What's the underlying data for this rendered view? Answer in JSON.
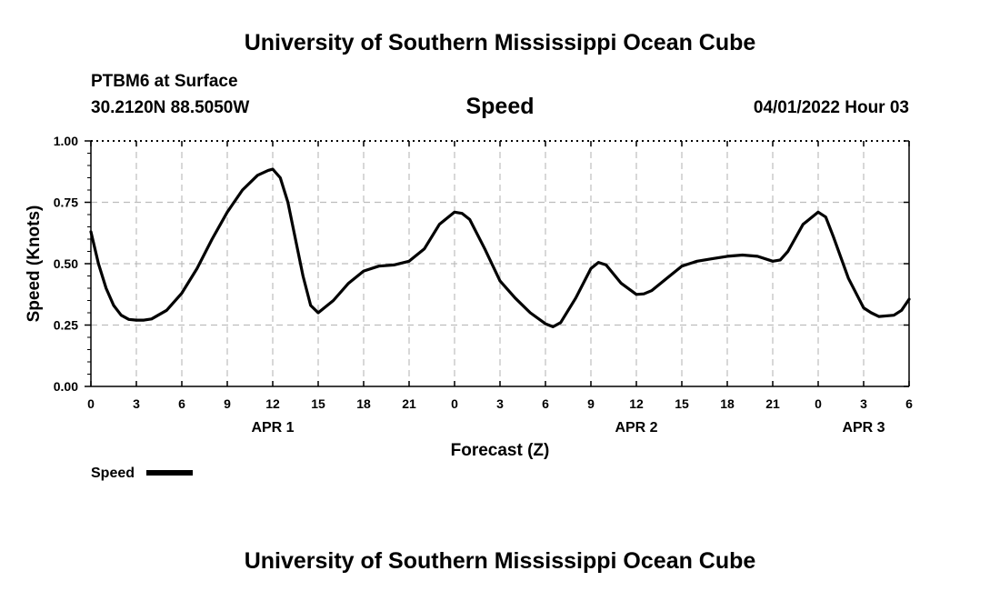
{
  "header": {
    "title": "University of Southern Mississippi Ocean Cube",
    "station": "PTBM6 at Surface",
    "location": "30.2120N  88.5050W",
    "datetime": "04/01/2022 Hour 03",
    "footer_title": "University of Southern Mississippi Ocean Cube"
  },
  "chart_data": {
    "type": "line",
    "title": "Speed",
    "xlabel": "Forecast (Z)",
    "ylabel": "Speed (Knots)",
    "x_unit": "hours since 04/01/2022 00Z",
    "xlim": [
      0,
      54
    ],
    "ylim": [
      0,
      1
    ],
    "grid": true,
    "legend_position": "bottom-left",
    "y_ticks": [
      {
        "value": 0,
        "label": "0.00"
      },
      {
        "value": 0.25,
        "label": "0.25"
      },
      {
        "value": 0.5,
        "label": "0.50"
      },
      {
        "value": 0.75,
        "label": "0.75"
      },
      {
        "value": 1,
        "label": "1.00"
      }
    ],
    "x_ticks": [
      {
        "value": 0,
        "label": "0"
      },
      {
        "value": 3,
        "label": "3"
      },
      {
        "value": 6,
        "label": "6"
      },
      {
        "value": 9,
        "label": "9"
      },
      {
        "value": 12,
        "label": "12"
      },
      {
        "value": 15,
        "label": "15"
      },
      {
        "value": 18,
        "label": "18"
      },
      {
        "value": 21,
        "label": "21"
      },
      {
        "value": 24,
        "label": "0"
      },
      {
        "value": 27,
        "label": "3"
      },
      {
        "value": 30,
        "label": "6"
      },
      {
        "value": 33,
        "label": "9"
      },
      {
        "value": 36,
        "label": "12"
      },
      {
        "value": 39,
        "label": "15"
      },
      {
        "value": 42,
        "label": "18"
      },
      {
        "value": 45,
        "label": "21"
      },
      {
        "value": 48,
        "label": "0"
      },
      {
        "value": 51,
        "label": "3"
      },
      {
        "value": 54,
        "label": "6"
      }
    ],
    "day_labels": [
      {
        "value": 12,
        "label": "APR 1"
      },
      {
        "value": 36,
        "label": "APR 2"
      },
      {
        "value": 51,
        "label": "APR 3"
      }
    ],
    "series": [
      {
        "name": "Speed",
        "color": "#000000",
        "x": [
          0,
          0.5,
          1,
          1.5,
          2,
          2.5,
          3,
          3.5,
          4,
          5,
          6,
          7,
          8,
          9,
          10,
          11,
          11.7,
          12,
          12.5,
          13,
          14,
          14.5,
          15,
          16,
          17,
          18,
          19,
          20,
          21,
          22,
          23,
          24,
          24.5,
          25,
          26,
          27,
          28,
          29,
          30,
          30.5,
          31,
          32,
          33,
          33.5,
          34,
          35,
          36,
          36.5,
          37,
          38,
          39,
          40,
          41,
          42,
          43,
          44,
          45,
          45.5,
          46,
          47,
          48,
          48.5,
          49,
          50,
          51,
          51.5,
          52,
          53,
          53.5,
          54
        ],
        "values": [
          0.63,
          0.5,
          0.4,
          0.33,
          0.29,
          0.273,
          0.27,
          0.27,
          0.275,
          0.31,
          0.38,
          0.48,
          0.6,
          0.71,
          0.8,
          0.86,
          0.88,
          0.885,
          0.85,
          0.75,
          0.45,
          0.33,
          0.3,
          0.35,
          0.42,
          0.47,
          0.49,
          0.495,
          0.51,
          0.56,
          0.66,
          0.71,
          0.705,
          0.68,
          0.56,
          0.43,
          0.36,
          0.3,
          0.255,
          0.243,
          0.26,
          0.36,
          0.48,
          0.505,
          0.495,
          0.42,
          0.375,
          0.377,
          0.39,
          0.44,
          0.49,
          0.51,
          0.52,
          0.53,
          0.535,
          0.53,
          0.51,
          0.515,
          0.55,
          0.66,
          0.71,
          0.69,
          0.61,
          0.44,
          0.32,
          0.3,
          0.285,
          0.29,
          0.31,
          0.355
        ]
      }
    ]
  }
}
